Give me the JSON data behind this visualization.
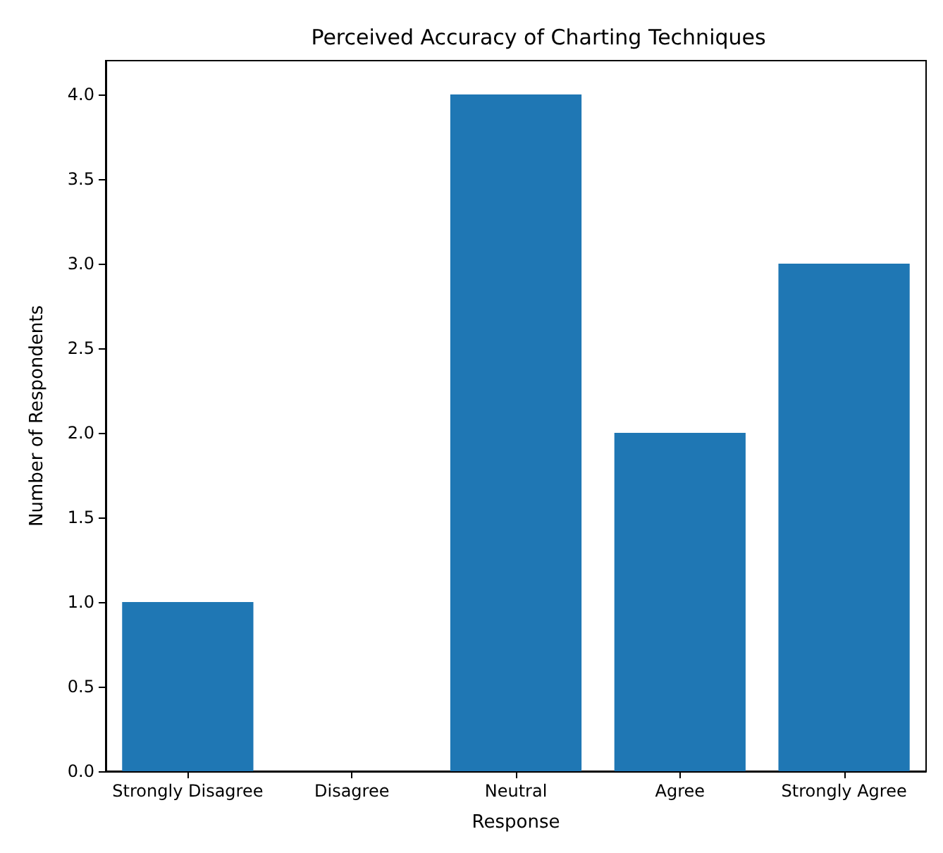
{
  "chart_data": {
    "type": "bar",
    "title": "Perceived Accuracy of Charting Techniques",
    "xlabel": "Response",
    "ylabel": "Number of Respondents",
    "categories": [
      "Strongly Disagree",
      "Disagree",
      "Neutral",
      "Agree",
      "Strongly Agree"
    ],
    "values": [
      1,
      0,
      4,
      2,
      3
    ],
    "color": "#1f77b4",
    "ylim": [
      0,
      4.2
    ],
    "yticks": [
      {
        "value": 0,
        "label": "0.0"
      },
      {
        "value": 0.5,
        "label": "0.5"
      },
      {
        "value": 1,
        "label": "1.0"
      },
      {
        "value": 1.5,
        "label": "1.5"
      },
      {
        "value": 2,
        "label": "2.0"
      },
      {
        "value": 2.5,
        "label": "2.5"
      },
      {
        "value": 3,
        "label": "3.0"
      },
      {
        "value": 3.5,
        "label": "3.5"
      },
      {
        "value": 4,
        "label": "4.0"
      }
    ],
    "grid": false
  }
}
